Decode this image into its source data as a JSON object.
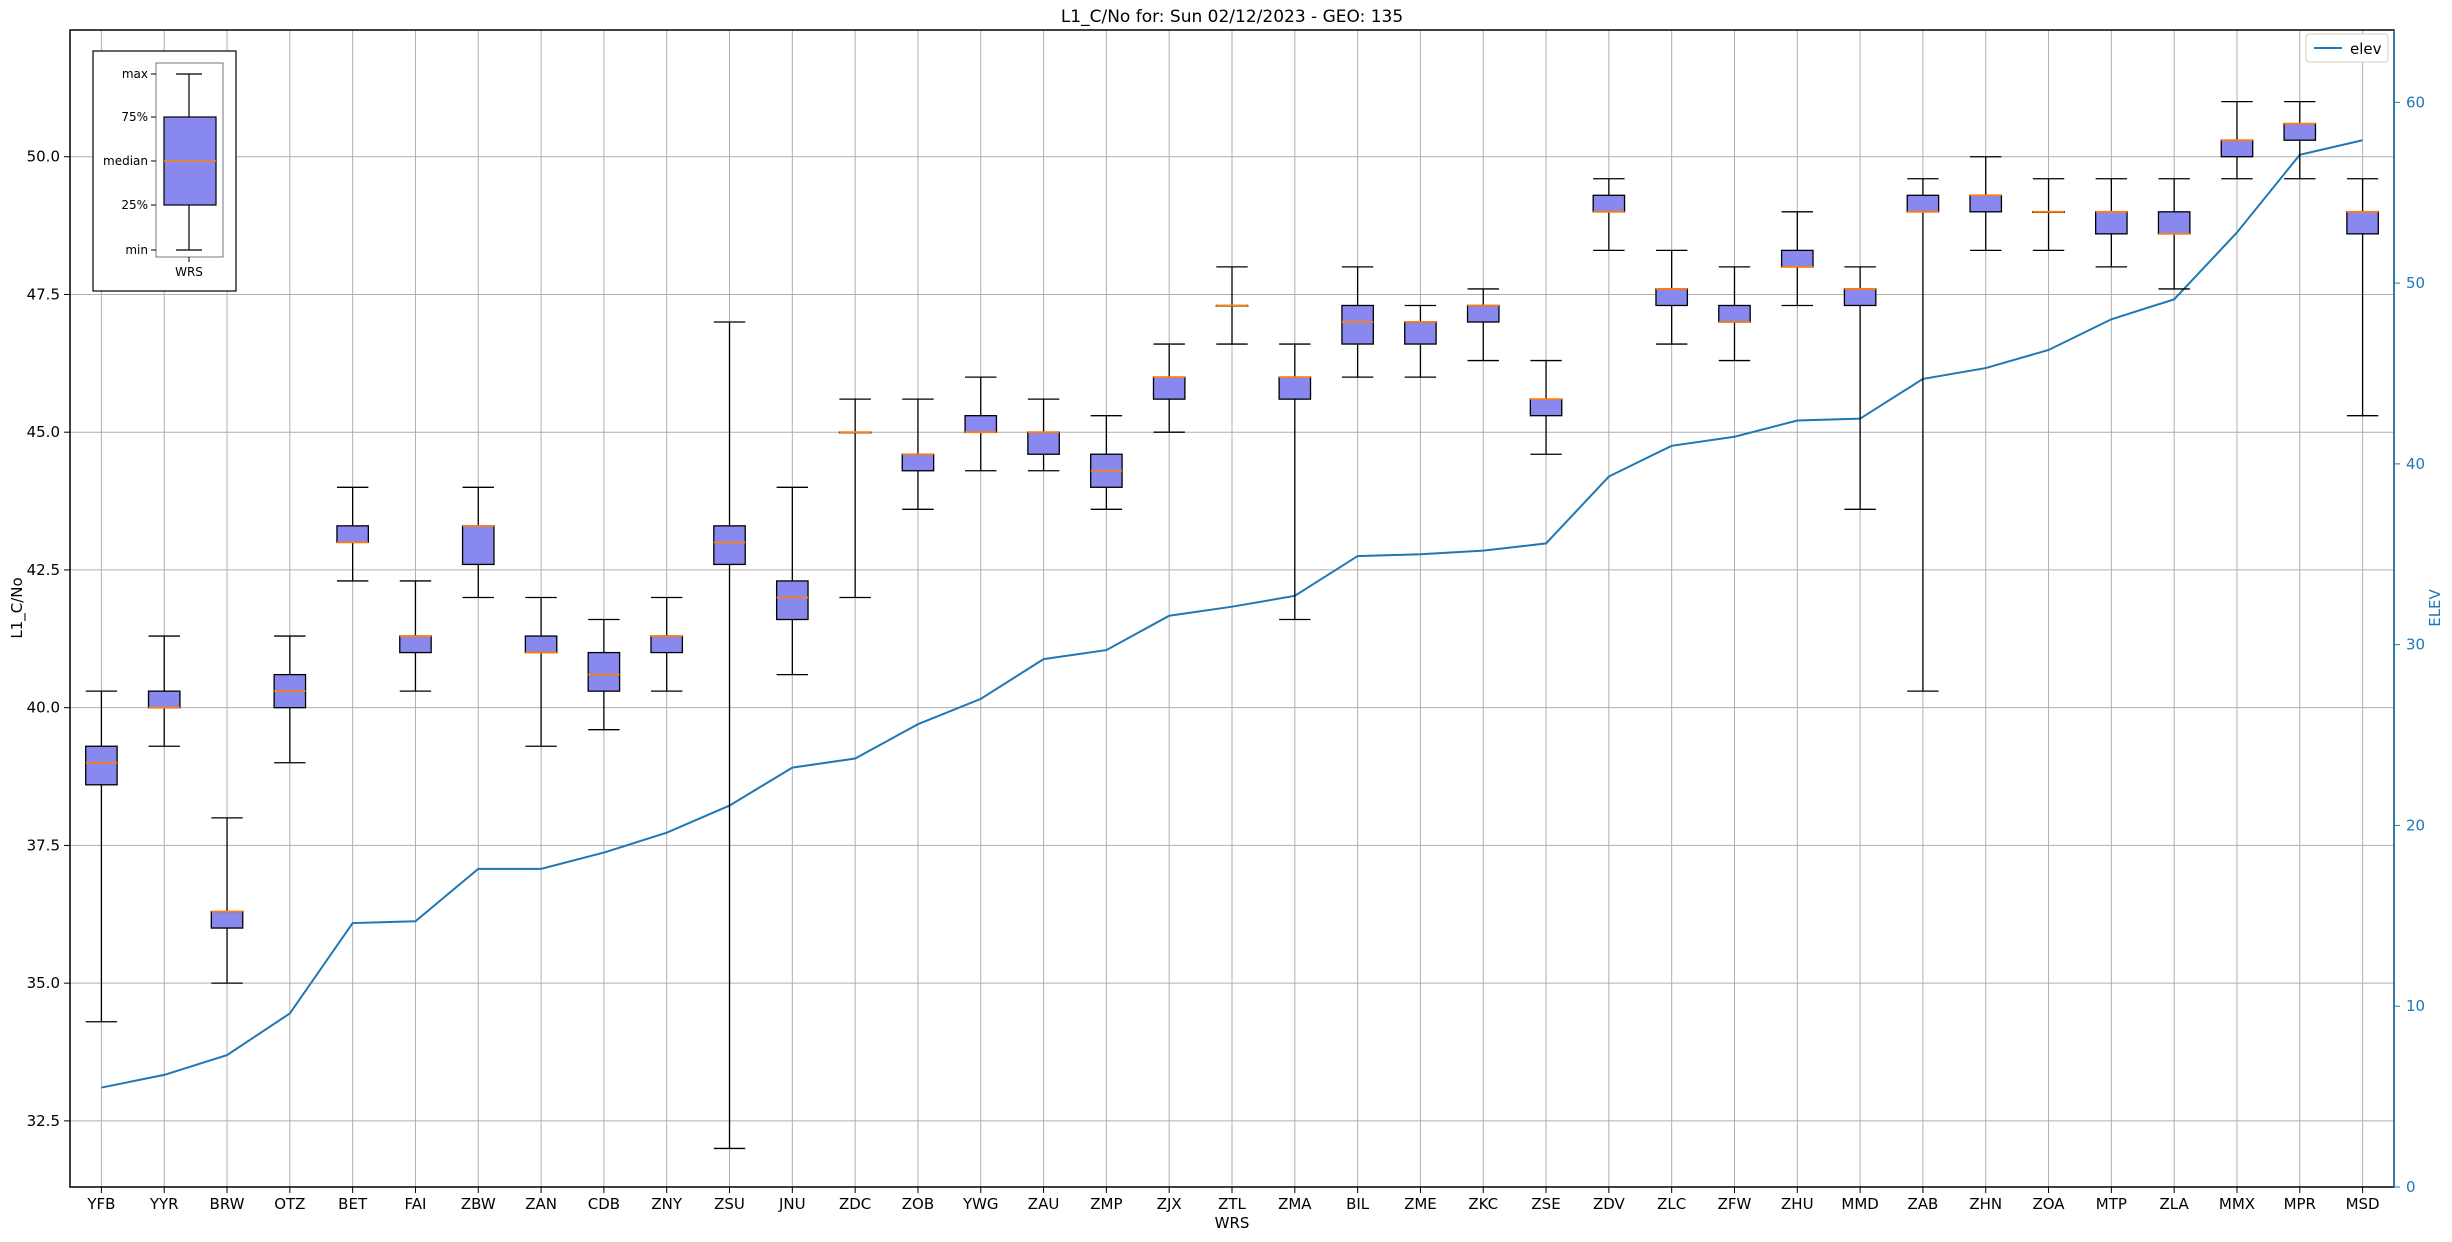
{
  "chart_data": {
    "type": "box",
    "title": "L1_C/No for: Sun 02/12/2023 - GEO: 135",
    "xlabel": "WRS",
    "ylabel": "L1_C/No",
    "y2label": "ELEV",
    "ylim": [
      31.3,
      52.3
    ],
    "y2lim": [
      0,
      64
    ],
    "yticks": [
      "32.5",
      "35.0",
      "37.5",
      "40.0",
      "42.5",
      "45.0",
      "47.5",
      "50.0"
    ],
    "y2ticks": [
      "0",
      "10",
      "20",
      "30",
      "40",
      "50",
      "60"
    ],
    "grid": true,
    "legend": {
      "position": "top-right",
      "entries": [
        "elev"
      ]
    },
    "colors": {
      "box_fill": "#8888ee",
      "median": "#ff7f0e",
      "elev_line": "#1f77b4",
      "grid": "#b0b0b0"
    },
    "categories": [
      "YFB",
      "YYR",
      "BRW",
      "OTZ",
      "BET",
      "FAI",
      "ZBW",
      "ZAN",
      "CDB",
      "ZNY",
      "ZSU",
      "JNU",
      "ZDC",
      "ZOB",
      "YWG",
      "ZAU",
      "ZMP",
      "ZJX",
      "ZTL",
      "ZMA",
      "BIL",
      "ZME",
      "ZKC",
      "ZSE",
      "ZDV",
      "ZLC",
      "ZFW",
      "ZHU",
      "MMD",
      "ZAB",
      "ZHN",
      "ZOA",
      "MTP",
      "ZLA",
      "MMX",
      "MPR",
      "MSD"
    ],
    "boxes": [
      {
        "min": 34.3,
        "q1": 38.6,
        "median": 39.0,
        "q3": 39.3,
        "max": 40.3
      },
      {
        "min": 39.3,
        "q1": 40.0,
        "median": 40.0,
        "q3": 40.3,
        "max": 41.3
      },
      {
        "min": 35.0,
        "q1": 36.0,
        "median": 36.3,
        "q3": 36.3,
        "max": 38.0
      },
      {
        "min": 39.0,
        "q1": 40.0,
        "median": 40.3,
        "q3": 40.6,
        "max": 41.3
      },
      {
        "min": 42.3,
        "q1": 43.0,
        "median": 43.0,
        "q3": 43.3,
        "max": 44.0
      },
      {
        "min": 40.3,
        "q1": 41.0,
        "median": 41.3,
        "q3": 41.3,
        "max": 42.3
      },
      {
        "min": 42.0,
        "q1": 42.6,
        "median": 43.3,
        "q3": 43.3,
        "max": 44.0
      },
      {
        "min": 39.3,
        "q1": 41.0,
        "median": 41.0,
        "q3": 41.3,
        "max": 42.0
      },
      {
        "min": 39.6,
        "q1": 40.3,
        "median": 40.6,
        "q3": 41.0,
        "max": 41.6
      },
      {
        "min": 40.3,
        "q1": 41.0,
        "median": 41.3,
        "q3": 41.3,
        "max": 42.0
      },
      {
        "min": 32.0,
        "q1": 42.6,
        "median": 43.0,
        "q3": 43.3,
        "max": 47.0
      },
      {
        "min": 40.6,
        "q1": 41.6,
        "median": 42.0,
        "q3": 42.3,
        "max": 44.0
      },
      {
        "min": 42.0,
        "q1": 45.0,
        "median": 45.0,
        "q3": 45.0,
        "max": 45.6
      },
      {
        "min": 43.6,
        "q1": 44.3,
        "median": 44.6,
        "q3": 44.6,
        "max": 45.6
      },
      {
        "min": 44.3,
        "q1": 45.0,
        "median": 45.0,
        "q3": 45.3,
        "max": 46.0
      },
      {
        "min": 44.3,
        "q1": 44.6,
        "median": 45.0,
        "q3": 45.0,
        "max": 45.6
      },
      {
        "min": 43.6,
        "q1": 44.0,
        "median": 44.3,
        "q3": 44.6,
        "max": 45.3
      },
      {
        "min": 45.0,
        "q1": 45.6,
        "median": 46.0,
        "q3": 46.0,
        "max": 46.6
      },
      {
        "min": 46.6,
        "q1": 47.3,
        "median": 47.3,
        "q3": 47.3,
        "max": 48.0
      },
      {
        "min": 41.6,
        "q1": 45.6,
        "median": 46.0,
        "q3": 46.0,
        "max": 46.6
      },
      {
        "min": 46.0,
        "q1": 46.6,
        "median": 47.0,
        "q3": 47.3,
        "max": 48.0
      },
      {
        "min": 46.0,
        "q1": 46.6,
        "median": 47.0,
        "q3": 47.0,
        "max": 47.3
      },
      {
        "min": 46.3,
        "q1": 47.0,
        "median": 47.3,
        "q3": 47.3,
        "max": 47.6
      },
      {
        "min": 44.6,
        "q1": 45.3,
        "median": 45.6,
        "q3": 45.6,
        "max": 46.3
      },
      {
        "min": 48.3,
        "q1": 49.0,
        "median": 49.0,
        "q3": 49.3,
        "max": 49.6
      },
      {
        "min": 46.6,
        "q1": 47.3,
        "median": 47.6,
        "q3": 47.6,
        "max": 48.3
      },
      {
        "min": 46.3,
        "q1": 47.0,
        "median": 47.0,
        "q3": 47.3,
        "max": 48.0
      },
      {
        "min": 47.3,
        "q1": 48.0,
        "median": 48.0,
        "q3": 48.3,
        "max": 49.0
      },
      {
        "min": 43.6,
        "q1": 47.3,
        "median": 47.6,
        "q3": 47.6,
        "max": 48.0
      },
      {
        "min": 40.3,
        "q1": 49.0,
        "median": 49.0,
        "q3": 49.3,
        "max": 49.6
      },
      {
        "min": 48.3,
        "q1": 49.0,
        "median": 49.3,
        "q3": 49.3,
        "max": 50.0
      },
      {
        "min": 48.3,
        "q1": 49.0,
        "median": 49.0,
        "q3": 49.0,
        "max": 49.6
      },
      {
        "min": 48.0,
        "q1": 48.6,
        "median": 49.0,
        "q3": 49.0,
        "max": 49.6
      },
      {
        "min": 47.6,
        "q1": 48.6,
        "median": 48.6,
        "q3": 49.0,
        "max": 49.6
      },
      {
        "min": 49.6,
        "q1": 50.0,
        "median": 50.3,
        "q3": 50.3,
        "max": 51.0
      },
      {
        "min": 49.6,
        "q1": 50.3,
        "median": 50.6,
        "q3": 50.6,
        "max": 51.0
      },
      {
        "min": 45.3,
        "q1": 48.6,
        "median": 49.0,
        "q3": 49.0,
        "max": 49.6
      }
    ],
    "series": [
      {
        "name": "elev",
        "axis": "right",
        "values": [
          5.5,
          6.2,
          7.3,
          9.6,
          14.6,
          14.7,
          17.6,
          17.6,
          18.5,
          19.6,
          21.1,
          23.2,
          23.7,
          25.6,
          27.0,
          29.2,
          29.7,
          31.6,
          32.1,
          32.7,
          34.9,
          35.0,
          35.2,
          35.6,
          39.3,
          41.0,
          41.5,
          42.4,
          42.5,
          44.7,
          45.3,
          46.3,
          48.0,
          49.1,
          52.8,
          57.1,
          57.9
        ]
      }
    ],
    "inset_legend": {
      "labels": [
        "max",
        "75%",
        "median",
        "25%",
        "min"
      ],
      "category": "WRS"
    }
  }
}
